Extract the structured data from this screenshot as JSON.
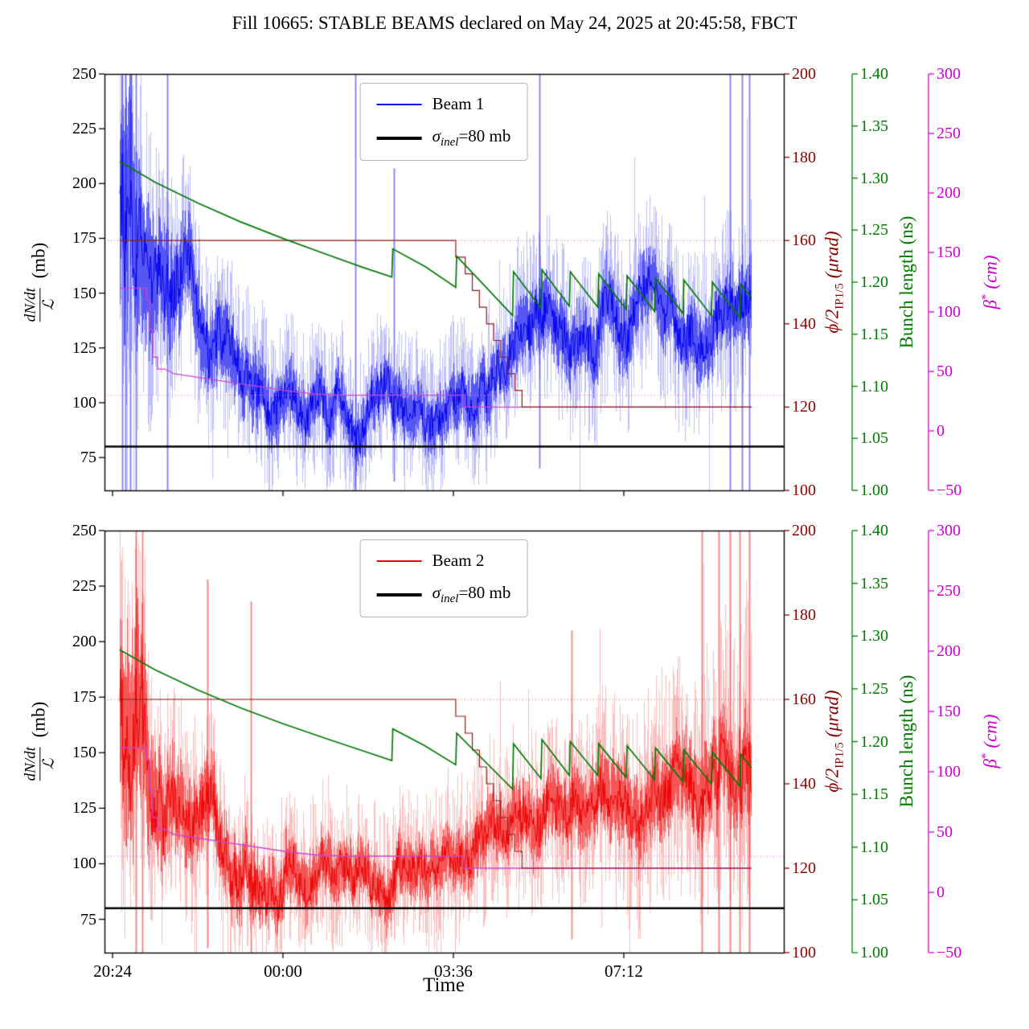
{
  "title": "Fill 10665: STABLE BEAMS declared on May 24, 2025 at 20:45:58, FBCT",
  "xlabel": "Time",
  "chart_data": {
    "type": "line",
    "x_axis": {
      "range": [
        -0.17,
        14.18
      ],
      "unit": "hours since 20:24",
      "tick_positions": [
        0,
        3.6,
        7.2,
        10.8
      ],
      "tick_labels": [
        "20:24",
        "00:00",
        "03:36",
        "07:12"
      ]
    },
    "axes": {
      "left": {
        "label_num": "dN/dt",
        "label_den": "ℒ",
        "label_unit": "(mb)",
        "color": "#000000",
        "range": [
          60,
          250
        ],
        "ticks": [
          75,
          100,
          125,
          150,
          175,
          200,
          225,
          250
        ],
        "tick_labels": [
          "75",
          "100",
          "125",
          "150",
          "175",
          "200",
          "225",
          "250"
        ]
      },
      "crossing": {
        "label_main": "ϕ/2",
        "label_sub": "IP1/5",
        "label_unit": "(μrad)",
        "color": "#8b0000",
        "range": [
          100,
          200
        ],
        "ticks": [
          100,
          120,
          140,
          160,
          180,
          200
        ],
        "tick_labels": [
          "100",
          "120",
          "140",
          "160",
          "180",
          "200"
        ]
      },
      "bunch": {
        "label": "Bunch length (ns)",
        "color": "#007a00",
        "range": [
          1.0,
          1.4
        ],
        "ticks": [
          1.0,
          1.05,
          1.1,
          1.15,
          1.2,
          1.25,
          1.3,
          1.35,
          1.4
        ],
        "tick_labels": [
          "1.00",
          "1.05",
          "1.10",
          "1.15",
          "1.20",
          "1.25",
          "1.30",
          "1.35",
          "1.40"
        ]
      },
      "beta": {
        "label_main": "β",
        "label_sup": "*",
        "label_unit": "(cm)",
        "color": "#cc00cc",
        "range": [
          -50,
          300
        ],
        "ticks": [
          -50,
          0,
          50,
          100,
          150,
          200,
          250,
          300
        ],
        "tick_labels": [
          "−50",
          "0",
          "50",
          "100",
          "150",
          "200",
          "250",
          "300"
        ]
      }
    },
    "subplots": [
      {
        "name": "beam1-panel",
        "legend": {
          "beam": "Beam 1",
          "sigma_sigma": "σ",
          "sigma_sub": "inel",
          "sigma_rest": "=80 mb"
        },
        "beam": {
          "color": "#0000ee",
          "seed": 42,
          "x": [
            0.15,
            0.35,
            0.6,
            1.0,
            1.5,
            2.0,
            2.6,
            3.2,
            3.8,
            4.6,
            5.4,
            6.2,
            7.0,
            7.6,
            8.2,
            8.8,
            9.4,
            10.4,
            11.4,
            12.4,
            13.1,
            13.5
          ],
          "center": [
            185,
            175,
            160,
            142,
            130,
            121,
            113,
            106,
            101,
            98,
            97,
            99,
            101,
            107,
            118,
            130,
            136,
            137,
            138,
            138,
            140,
            142
          ],
          "core": [
            65,
            60,
            45,
            30,
            25,
            22,
            20,
            18,
            16,
            15,
            15,
            15,
            15,
            16,
            17,
            18,
            18,
            18,
            18,
            18,
            19,
            20
          ],
          "env": [
            110,
            100,
            80,
            60,
            50,
            45,
            42,
            40,
            38,
            36,
            36,
            36,
            36,
            38,
            40,
            42,
            44,
            44,
            44,
            45,
            46,
            48
          ],
          "spikes": [
            [
              0.2,
              60,
              250
            ],
            [
              0.28,
              60,
              250
            ],
            [
              0.38,
              60,
              250
            ],
            [
              0.5,
              60,
              250
            ],
            [
              1.15,
              60,
              250
            ],
            [
              5.13,
              60,
              250
            ],
            [
              5.94,
              64,
              207
            ],
            [
              9.02,
              70,
              250
            ],
            [
              13.05,
              60,
              250
            ],
            [
              13.3,
              60,
              250
            ],
            [
              13.45,
              60,
              250
            ]
          ]
        },
        "sigma_line": {
          "value": 80,
          "color": "#000000"
        },
        "crossing_ref": {
          "value": 160
        },
        "beta_ref": {
          "value": 30
        },
        "crossing_line": {
          "color": "#8b1a1a",
          "x": [
            0.15,
            7.25,
            7.25,
            7.45,
            7.45,
            7.6,
            7.6,
            7.75,
            7.75,
            7.9,
            7.9,
            8.05,
            8.05,
            8.2,
            8.2,
            8.35,
            8.35,
            8.5,
            8.5,
            8.65,
            8.65,
            13.5
          ],
          "y": [
            160,
            160,
            156,
            156,
            152,
            152,
            148,
            148,
            144,
            144,
            140,
            140,
            136,
            136,
            132,
            132,
            128,
            128,
            124,
            124,
            120,
            120
          ]
        },
        "beta_line": {
          "color": "#cc44cc",
          "x": [
            0.15,
            0.72,
            0.72,
            0.78,
            0.78,
            0.85,
            0.85,
            0.95,
            0.95,
            1.1,
            1.3,
            1.8,
            2.3,
            2.8,
            3.3,
            3.8,
            4.3,
            4.9,
            7.4,
            7.4,
            13.5
          ],
          "y": [
            120,
            120,
            110,
            110,
            85,
            85,
            62,
            62,
            52,
            52,
            48,
            45,
            42,
            39,
            36,
            33,
            31,
            30,
            30,
            20,
            20
          ]
        },
        "bunch_line": {
          "color": "#007a00",
          "x": [
            0.15,
            0.9,
            1.8,
            2.7,
            3.6,
            4.5,
            5.3,
            5.9,
            5.92,
            6.6,
            7.25,
            7.27,
            8.45,
            8.47,
            9.05,
            9.07,
            9.65,
            9.67,
            10.25,
            10.27,
            10.85,
            10.87,
            11.45,
            11.47,
            12.05,
            12.07,
            12.65,
            12.67,
            13.25,
            13.27,
            13.5
          ],
          "y": [
            1.316,
            1.296,
            1.276,
            1.258,
            1.242,
            1.227,
            1.214,
            1.205,
            1.232,
            1.215,
            1.195,
            1.225,
            1.168,
            1.21,
            1.175,
            1.212,
            1.177,
            1.21,
            1.176,
            1.208,
            1.174,
            1.206,
            1.172,
            1.204,
            1.17,
            1.202,
            1.168,
            1.2,
            1.166,
            1.198,
            1.185
          ]
        }
      },
      {
        "name": "beam2-panel",
        "legend": {
          "beam": "Beam 2",
          "sigma_sigma": "σ",
          "sigma_sub": "inel",
          "sigma_rest": "=80 mb"
        },
        "beam": {
          "color": "#ee0000",
          "seed": 1337,
          "x": [
            0.15,
            0.4,
            0.7,
            1.0,
            1.5,
            2.0,
            2.6,
            3.2,
            3.8,
            4.6,
            5.4,
            6.2,
            7.0,
            7.6,
            8.2,
            8.8,
            9.4,
            10.2,
            11.0,
            11.8,
            12.6,
            13.1,
            13.5
          ],
          "center": [
            180,
            170,
            150,
            133,
            122,
            114,
            107,
            102,
            98,
            95,
            94,
            95,
            98,
            103,
            110,
            117,
            122,
            127,
            132,
            138,
            146,
            152,
            158
          ],
          "core": [
            60,
            55,
            40,
            28,
            24,
            21,
            19,
            17,
            16,
            15,
            15,
            15,
            15,
            16,
            17,
            18,
            18,
            19,
            20,
            21,
            23,
            25,
            28
          ],
          "env": [
            105,
            95,
            75,
            55,
            48,
            44,
            42,
            40,
            38,
            37,
            37,
            37,
            38,
            40,
            42,
            44,
            46,
            48,
            50,
            54,
            60,
            70,
            80
          ],
          "spikes": [
            [
              0.5,
              60,
              250
            ],
            [
              0.62,
              60,
              250
            ],
            [
              2.0,
              62,
              228
            ],
            [
              2.92,
              60,
              218
            ],
            [
              9.7,
              66,
              205
            ],
            [
              12.45,
              60,
              250
            ],
            [
              12.8,
              60,
              250
            ],
            [
              13.05,
              60,
              250
            ],
            [
              13.25,
              60,
              250
            ],
            [
              13.45,
              60,
              250
            ]
          ]
        },
        "sigma_line": {
          "value": 80,
          "color": "#000000"
        },
        "crossing_ref": {
          "value": 160
        },
        "beta_ref": {
          "value": 30
        },
        "crossing_line": {
          "color": "#8b1a1a",
          "x": [
            0.15,
            7.25,
            7.25,
            7.45,
            7.45,
            7.6,
            7.6,
            7.75,
            7.75,
            7.9,
            7.9,
            8.05,
            8.05,
            8.2,
            8.2,
            8.35,
            8.35,
            8.5,
            8.5,
            8.65,
            8.65,
            13.5
          ],
          "y": [
            160,
            160,
            156,
            156,
            152,
            152,
            148,
            148,
            144,
            144,
            140,
            140,
            136,
            136,
            132,
            132,
            128,
            128,
            124,
            124,
            120,
            120
          ]
        },
        "beta_line": {
          "color": "#cc44cc",
          "x": [
            0.15,
            0.72,
            0.72,
            0.78,
            0.78,
            0.85,
            0.85,
            0.95,
            0.95,
            1.1,
            1.3,
            1.8,
            2.3,
            2.8,
            3.3,
            3.8,
            4.3,
            4.9,
            7.4,
            7.4,
            13.5
          ],
          "y": [
            120,
            120,
            110,
            110,
            85,
            85,
            62,
            62,
            52,
            52,
            48,
            45,
            42,
            39,
            36,
            33,
            31,
            30,
            30,
            20,
            20
          ]
        },
        "bunch_line": {
          "color": "#007a00",
          "x": [
            0.15,
            0.9,
            1.8,
            2.7,
            3.6,
            4.5,
            5.3,
            5.9,
            5.92,
            6.6,
            7.25,
            7.27,
            8.45,
            8.47,
            9.05,
            9.07,
            9.65,
            9.67,
            10.25,
            10.27,
            10.85,
            10.87,
            11.45,
            11.47,
            12.05,
            12.07,
            12.65,
            12.67,
            13.25,
            13.27,
            13.5
          ],
          "y": [
            1.287,
            1.268,
            1.249,
            1.232,
            1.217,
            1.203,
            1.191,
            1.182,
            1.212,
            1.196,
            1.178,
            1.208,
            1.155,
            1.198,
            1.165,
            1.202,
            1.168,
            1.2,
            1.168,
            1.198,
            1.166,
            1.196,
            1.164,
            1.194,
            1.162,
            1.192,
            1.16,
            1.19,
            1.158,
            1.188,
            1.175
          ]
        }
      }
    ]
  }
}
